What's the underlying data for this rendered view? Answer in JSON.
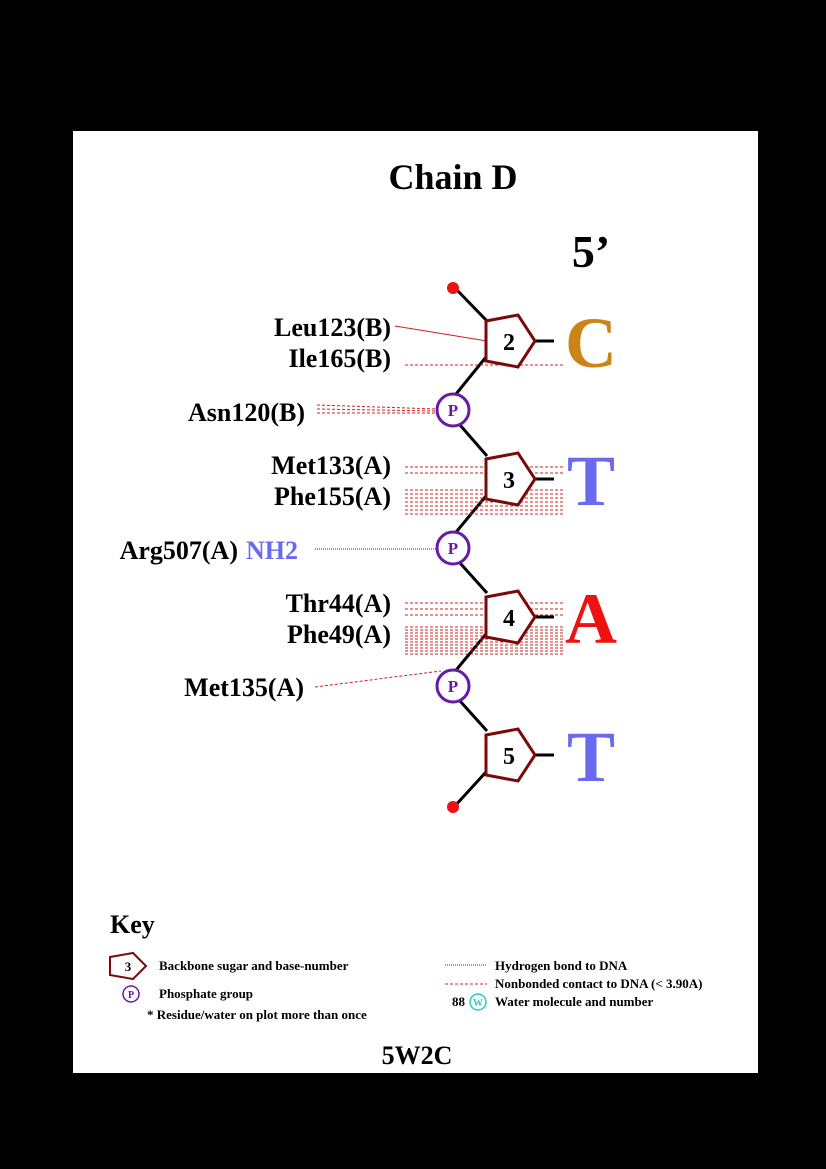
{
  "title": "Chain D",
  "strand_end_label": "5’",
  "pdb_code": "5W2C",
  "colors": {
    "sugar": "#7a0a0a",
    "phosphate": "#6a18a8",
    "nonbonded": "#cc2222",
    "hbond": "#2222cc",
    "base_C": "#cc8418",
    "base_T": "#6a6af0",
    "base_A": "#ee1111",
    "atom_label": "#6a6af0",
    "end_dot": "#ee1111",
    "water": "#22cccc"
  },
  "nucleotides": [
    {
      "number": "2",
      "base": "C"
    },
    {
      "number": "3",
      "base": "T"
    },
    {
      "number": "4",
      "base": "A"
    },
    {
      "number": "5",
      "base": "T"
    }
  ],
  "phosphate_symbol": "P",
  "residues": [
    {
      "label": "Leu123(B)"
    },
    {
      "label": "Ile165(B)"
    },
    {
      "label": "Asn120(B)"
    },
    {
      "label": "Met133(A)"
    },
    {
      "label": "Phe155(A)"
    },
    {
      "label": "Arg507(A)",
      "atom": "NH2"
    },
    {
      "label": "Thr44(A)"
    },
    {
      "label": "Phe49(A)"
    },
    {
      "label": "Met135(A)"
    }
  ],
  "key": {
    "title": "Key",
    "sugar_symbol": "3",
    "sugar": "Backbone sugar and base-number",
    "phosphate": "Phosphate group",
    "repeat_note": "* Residue/water on plot more than once",
    "hbond": "Hydrogen bond to DNA",
    "nonbonded": "Nonbonded contact to DNA (< 3.90A)",
    "water_number": "88",
    "water_symbol": "W",
    "water": "Water molecule and number"
  }
}
